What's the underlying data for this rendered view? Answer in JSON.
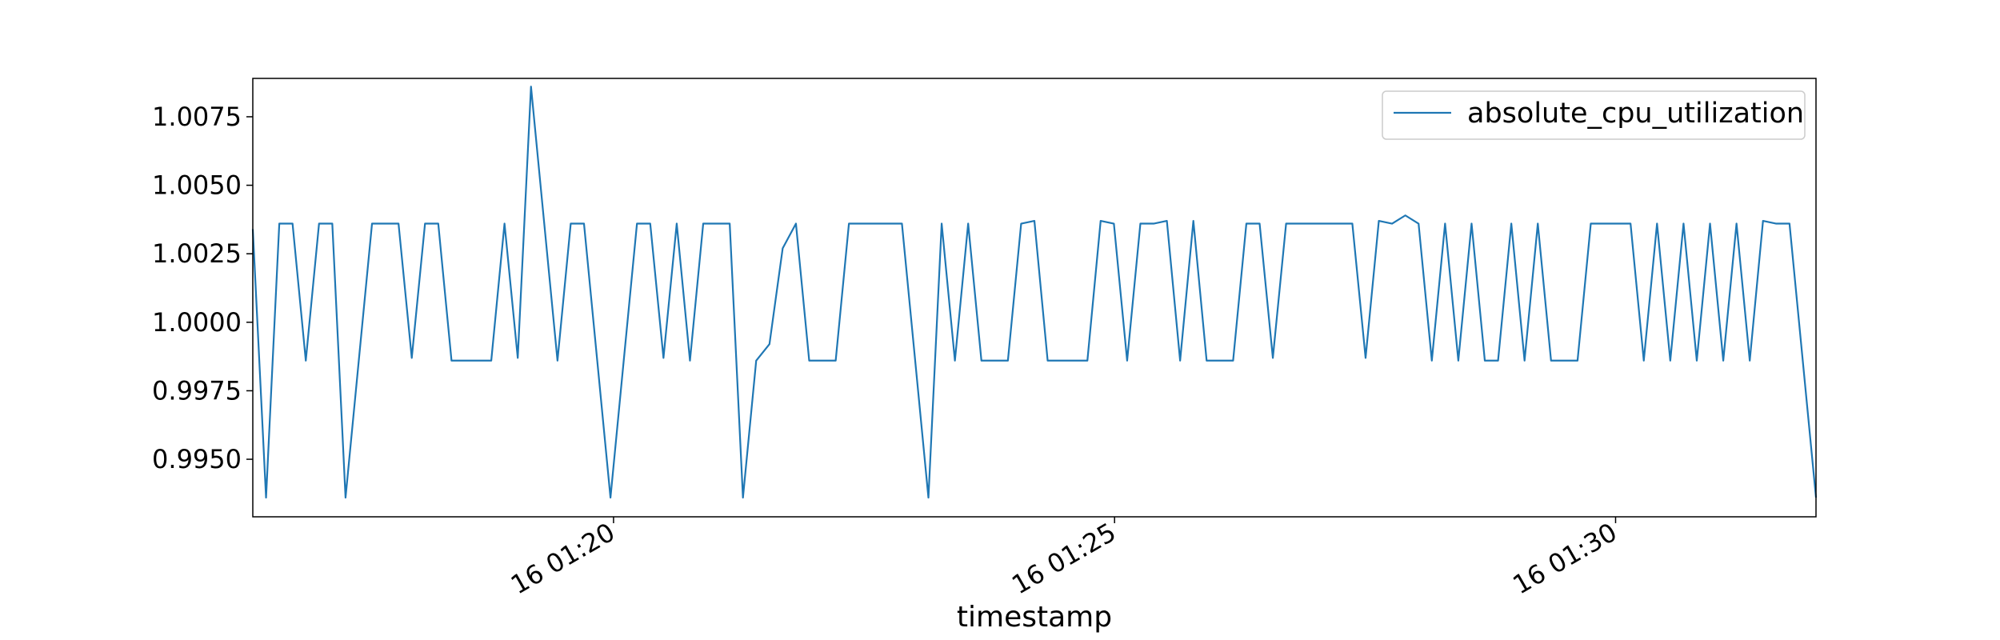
{
  "chart_data": {
    "type": "line",
    "title": "",
    "xlabel": "timestamp",
    "ylabel": "",
    "x_start": "2014-02-16T01:16:24",
    "x_end": "2014-02-16T01:32:00",
    "xlim": [
      "2014-02-16T01:16:24",
      "2014-02-16T01:32:00"
    ],
    "ylim": [
      0.9929,
      1.0089
    ],
    "x_ticks": [
      {
        "time": "2014-02-16T01:20:00",
        "label": "16 01:20"
      },
      {
        "time": "2014-02-16T01:25:00",
        "label": "16 01:25"
      },
      {
        "time": "2014-02-16T01:30:00",
        "label": "16 01:30"
      }
    ],
    "y_ticks": [
      {
        "value": 0.995,
        "label": "0.9950"
      },
      {
        "value": 0.9975,
        "label": "0.9975"
      },
      {
        "value": 1.0,
        "label": "1.0000"
      },
      {
        "value": 1.0025,
        "label": "1.0025"
      },
      {
        "value": 1.005,
        "label": "1.0050"
      },
      {
        "value": 1.0075,
        "label": "1.0075"
      }
    ],
    "grid": false,
    "legend_position": "upper right",
    "series": [
      {
        "name": "absolute_cpu_utilization",
        "color": "#1f77b4",
        "values": [
          1.0034,
          0.9936,
          1.0036,
          1.0036,
          0.9986,
          1.0036,
          1.0036,
          0.9936,
          0.9986,
          1.0036,
          1.0036,
          1.0036,
          0.9987,
          1.0036,
          1.0036,
          0.9986,
          0.9986,
          0.9986,
          0.9986,
          1.0036,
          0.9987,
          1.0086,
          1.0036,
          0.9986,
          1.0036,
          1.0036,
          0.9986,
          0.9936,
          0.9986,
          1.0036,
          1.0036,
          0.9987,
          1.0036,
          0.9986,
          1.0036,
          1.0036,
          1.0036,
          0.9936,
          0.9986,
          0.9992,
          1.0027,
          1.0036,
          0.9986,
          0.9986,
          0.9986,
          1.0036,
          1.0036,
          1.0036,
          1.0036,
          1.0036,
          0.9986,
          0.9936,
          1.0036,
          0.9986,
          1.0036,
          0.9986,
          0.9986,
          0.9986,
          1.0036,
          1.0037,
          0.9986,
          0.9986,
          0.9986,
          0.9986,
          1.0037,
          1.0036,
          0.9986,
          1.0036,
          1.0036,
          1.0037,
          0.9986,
          1.0037,
          0.9986,
          0.9986,
          0.9986,
          1.0036,
          1.0036,
          0.9987,
          1.0036,
          1.0036,
          1.0036,
          1.0036,
          1.0036,
          1.0036,
          0.9987,
          1.0037,
          1.0036,
          1.0039,
          1.0036,
          0.9986,
          1.0036,
          0.9986,
          1.0036,
          0.9986,
          0.9986,
          1.0036,
          0.9986,
          1.0036,
          0.9986,
          0.9986,
          0.9986,
          1.0036,
          1.0036,
          1.0036,
          1.0036,
          0.9986,
          1.0036,
          0.9986,
          1.0036,
          0.9986,
          1.0036,
          0.9986,
          1.0036,
          0.9986,
          1.0037,
          1.0036,
          1.0036,
          0.9986,
          0.9936
        ]
      }
    ]
  }
}
